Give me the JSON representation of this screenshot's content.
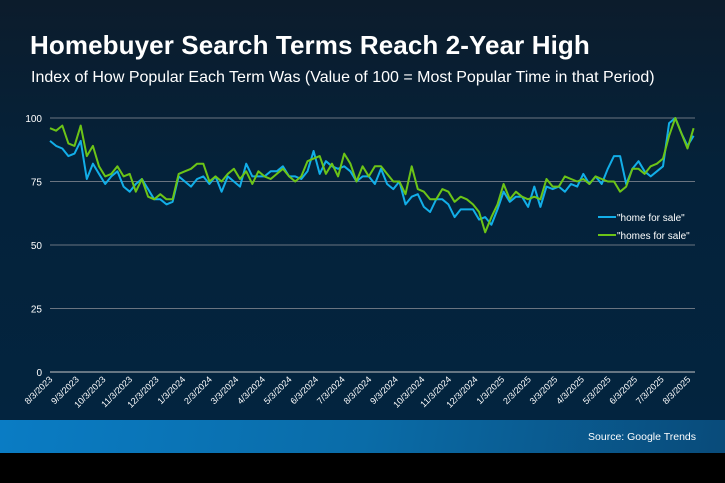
{
  "title": "Homebuyer Search Terms Reach 2-Year High",
  "subtitle": "Index of How Popular Each Term Was (Value of 100 = Most Popular Time in that Period)",
  "source": "Source: Google Trends",
  "chart_data": {
    "type": "line",
    "title": "Homebuyer Search Terms Reach 2-Year High",
    "subtitle": "Index of How Popular Each Term Was (Value of 100 = Most Popular Time in that Period)",
    "xlabel": "",
    "ylabel": "",
    "ylim": [
      0,
      100
    ],
    "yticks": [
      0,
      25,
      50,
      75,
      100
    ],
    "grid": true,
    "legend": "right",
    "frequency": "weekly",
    "xtick_labels": [
      "8/3/2023",
      "9/3/2023",
      "10/3/2023",
      "11/3/2023",
      "12/3/2023",
      "1/3/2024",
      "2/3/2024",
      "3/3/2024",
      "4/3/2024",
      "5/3/2024",
      "6/3/2024",
      "7/3/2024",
      "8/3/2024",
      "9/3/2024",
      "10/3/2024",
      "11/3/2024",
      "12/3/2024",
      "1/3/2025",
      "2/3/2025",
      "3/3/2025",
      "4/3/2025",
      "5/3/2025",
      "6/3/2025",
      "7/3/2025",
      "8/3/2025"
    ],
    "series": [
      {
        "name": "\"home for sale\"",
        "color": "#12aee8",
        "values": [
          91,
          89,
          88,
          85,
          86,
          91,
          76,
          82,
          78,
          74,
          77,
          79,
          73,
          71,
          74,
          76,
          72,
          68,
          68,
          66,
          67,
          77,
          75,
          73,
          76,
          77,
          74,
          77,
          71,
          77,
          75,
          73,
          82,
          77,
          77,
          77,
          79,
          79,
          81,
          77,
          77,
          76,
          79,
          87,
          78,
          83,
          81,
          80,
          81,
          79,
          75,
          77,
          77,
          74,
          80,
          74,
          72,
          75,
          66,
          69,
          70,
          65,
          63,
          68,
          68,
          66,
          61,
          64,
          64,
          64,
          60,
          61,
          58,
          64,
          71,
          67,
          69,
          69,
          65,
          73,
          65,
          73,
          72,
          73,
          71,
          74,
          73,
          78,
          74,
          77,
          74,
          80,
          85,
          85,
          74,
          80,
          83,
          79,
          77,
          79,
          81,
          98,
          100,
          94,
          89,
          93
        ]
      },
      {
        "name": "\"homes for sale\"",
        "color": "#6cc417",
        "values": [
          96,
          95,
          97,
          90,
          89,
          97,
          85,
          89,
          81,
          77,
          78,
          81,
          77,
          78,
          71,
          76,
          69,
          68,
          70,
          68,
          68,
          78,
          79,
          80,
          82,
          82,
          75,
          77,
          75,
          78,
          80,
          76,
          79,
          74,
          79,
          77,
          76,
          78,
          80,
          77,
          75,
          77,
          83,
          84,
          85,
          78,
          82,
          77,
          86,
          82,
          75,
          81,
          77,
          81,
          81,
          78,
          75,
          75,
          70,
          81,
          72,
          71,
          68,
          68,
          72,
          71,
          67,
          69,
          68,
          66,
          63,
          55,
          61,
          66,
          74,
          68,
          71,
          69,
          68,
          69,
          68,
          76,
          73,
          73,
          77,
          76,
          75,
          76,
          74,
          77,
          76,
          75,
          75,
          71,
          73,
          80,
          80,
          78,
          81,
          82,
          84,
          93,
          100,
          94,
          88,
          96
        ]
      }
    ]
  }
}
